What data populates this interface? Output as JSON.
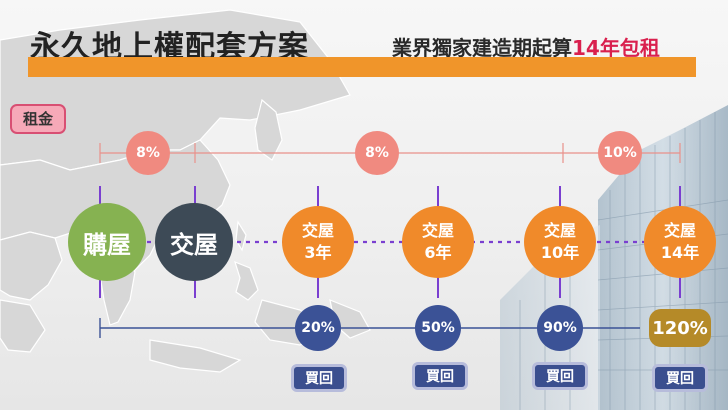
{
  "header": {
    "title": "永久地上權配套方案",
    "subtitle_prefix": "業界獨家建造期起算",
    "subtitle_highlight": "14年包租"
  },
  "rent_label": "租金",
  "rent_rates": [
    "8%",
    "8%",
    "10%"
  ],
  "milestones": {
    "buy": "購屋",
    "deliver": "交屋",
    "steps": [
      {
        "line1": "交屋",
        "line2": "3年"
      },
      {
        "line1": "交屋",
        "line2": "6年"
      },
      {
        "line1": "交屋",
        "line2": "10年"
      },
      {
        "line1": "交屋",
        "line2": "14年"
      }
    ]
  },
  "buyback_rates": [
    "20%",
    "50%",
    "90%",
    "120%"
  ],
  "buyback_button": "買回",
  "colors": {
    "accent_orange": "#f0952a",
    "highlight_red": "#d9204e",
    "rent_pink": "#f08a80",
    "buy_green": "#86b251",
    "deliver_slate": "#3d4a56",
    "step_orange": "#f08a2a",
    "buyback_blue": "#3b5296",
    "final_gold": "#b58a28"
  }
}
